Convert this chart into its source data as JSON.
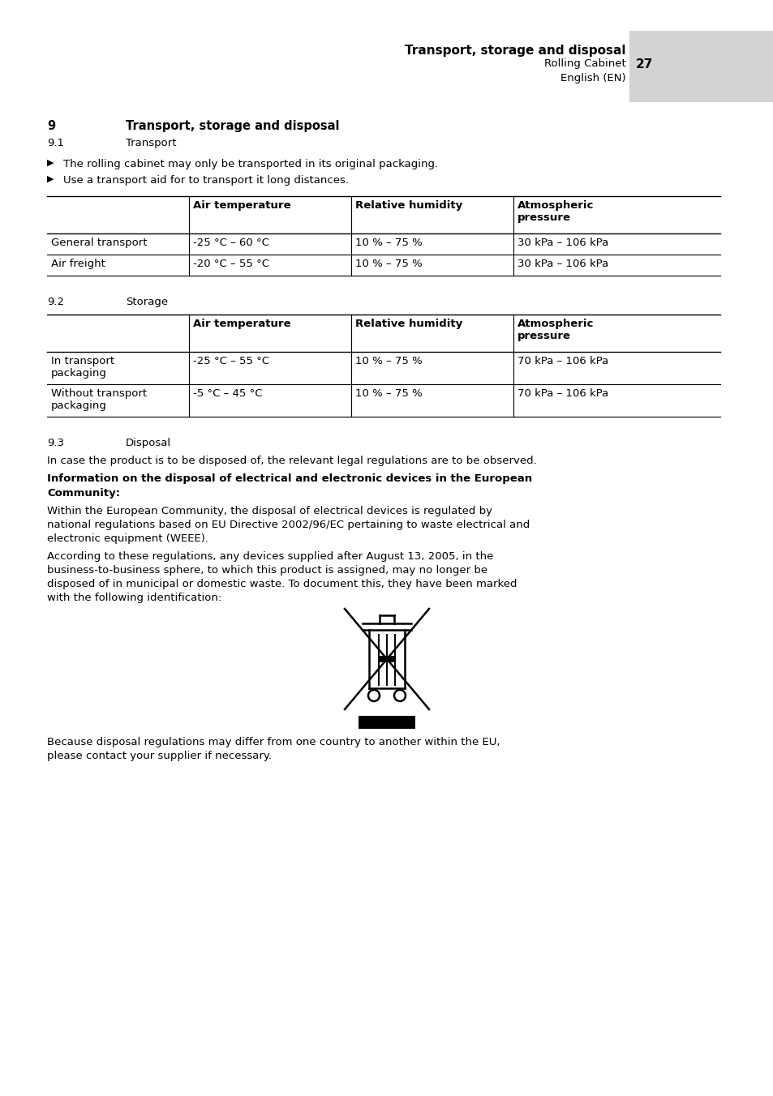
{
  "page_title": "Transport, storage and disposal",
  "page_subtitle": "Rolling Cabinet",
  "page_number": "27",
  "page_lang": "English (EN)",
  "transport_table_headers": [
    "",
    "Air temperature",
    "Relative humidity",
    "Atmospheric\npressure"
  ],
  "transport_table_rows": [
    [
      "General transport",
      "-25 °C – 60 °C",
      "10 % – 75 %",
      "30 kPa – 106 kPa"
    ],
    [
      "Air freight",
      "-20 °C – 55 °C",
      "10 % – 75 %",
      "30 kPa – 106 kPa"
    ]
  ],
  "storage_table_headers": [
    "",
    "Air temperature",
    "Relative humidity",
    "Atmospheric\npressure"
  ],
  "storage_table_rows": [
    [
      "In transport\npackaging",
      "-25 °C – 55 °C",
      "10 % – 75 %",
      "70 kPa – 106 kPa"
    ],
    [
      "Without transport\npackaging",
      "-5 °C – 45 °C",
      "10 % – 75 %",
      "70 kPa – 106 kPa"
    ]
  ],
  "disposal_para1": "In case the product is to be disposed of, the relevant legal regulations are to be observed.",
  "disposal_bold_heading_line1": "Information on the disposal of electrical and electronic devices in the European",
  "disposal_bold_heading_line2": "Community:",
  "disposal_para2_line1": "Within the European Community, the disposal of electrical devices is regulated by",
  "disposal_para2_line2": "national regulations based on EU Directive 2002/96/EC pertaining to waste electrical and",
  "disposal_para2_line3": "electronic equipment (WEEE).",
  "disposal_para3_line1": "According to these regulations, any devices supplied after August 13, 2005, in the",
  "disposal_para3_line2": "business-to-business sphere, to which this product is assigned, may no longer be",
  "disposal_para3_line3": "disposed of in municipal or domestic waste. To document this, they have been marked",
  "disposal_para3_line4": "with the following identification:",
  "disposal_footer_line1": "Because disposal regulations may differ from one country to another within the EU,",
  "disposal_footer_line2": "please contact your supplier if necessary.",
  "bg_color": "#ffffff",
  "header_bg": "#d3d3d3",
  "text_color": "#000000",
  "font_size_body": 9.5,
  "font_size_section": 10.5
}
